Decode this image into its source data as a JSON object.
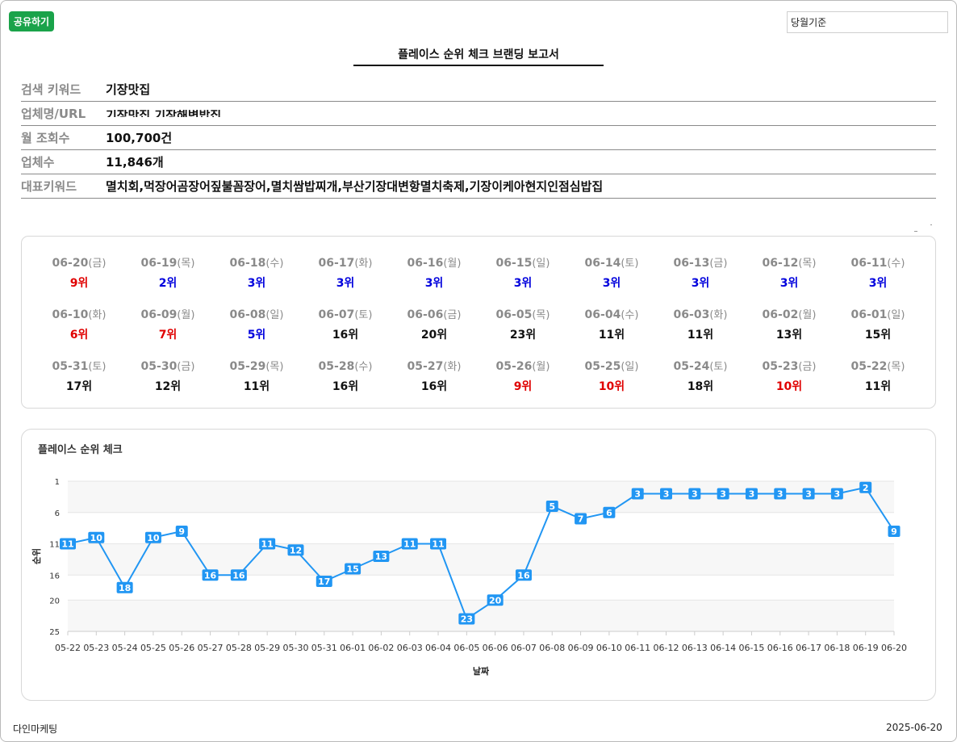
{
  "header": {
    "share_label": "공유하기",
    "basis_value": "당월기준",
    "title": "플레이스 순위 체크 브랜딩 보고서"
  },
  "info": {
    "keyword_label": "검색 키워드",
    "keyword_value": "기장맛집",
    "business_label": "업체명/URL",
    "business_value": "기장맛집 기장해변밥집",
    "views_label": "월 조회수",
    "views_value": "100,700건",
    "count_label": "업체수",
    "count_value": "11,846개",
    "rep_label": "대표키워드",
    "rep_value": "멸치회,먹장어곰장어짚불꼼장어,멸치쌈밥찌개,부산기장대변항멸치축제,기장이케아현지인점심밥집"
  },
  "colors": {
    "red": "#e00000",
    "blue": "#0000dd",
    "black": "#111111",
    "line": "#2196f3",
    "share": "#1aa34a"
  },
  "ranks": [
    {
      "date": "06-20",
      "dow": "(금)",
      "rank": "9위",
      "color": "red"
    },
    {
      "date": "06-19",
      "dow": "(목)",
      "rank": "2위",
      "color": "blue"
    },
    {
      "date": "06-18",
      "dow": "(수)",
      "rank": "3위",
      "color": "blue"
    },
    {
      "date": "06-17",
      "dow": "(화)",
      "rank": "3위",
      "color": "blue"
    },
    {
      "date": "06-16",
      "dow": "(월)",
      "rank": "3위",
      "color": "blue"
    },
    {
      "date": "06-15",
      "dow": "(일)",
      "rank": "3위",
      "color": "blue"
    },
    {
      "date": "06-14",
      "dow": "(토)",
      "rank": "3위",
      "color": "blue"
    },
    {
      "date": "06-13",
      "dow": "(금)",
      "rank": "3위",
      "color": "blue"
    },
    {
      "date": "06-12",
      "dow": "(목)",
      "rank": "3위",
      "color": "blue"
    },
    {
      "date": "06-11",
      "dow": "(수)",
      "rank": "3위",
      "color": "blue"
    },
    {
      "date": "06-10",
      "dow": "(화)",
      "rank": "6위",
      "color": "red"
    },
    {
      "date": "06-09",
      "dow": "(월)",
      "rank": "7위",
      "color": "red"
    },
    {
      "date": "06-08",
      "dow": "(일)",
      "rank": "5위",
      "color": "blue"
    },
    {
      "date": "06-07",
      "dow": "(토)",
      "rank": "16위",
      "color": "black"
    },
    {
      "date": "06-06",
      "dow": "(금)",
      "rank": "20위",
      "color": "black"
    },
    {
      "date": "06-05",
      "dow": "(목)",
      "rank": "23위",
      "color": "black"
    },
    {
      "date": "06-04",
      "dow": "(수)",
      "rank": "11위",
      "color": "black"
    },
    {
      "date": "06-03",
      "dow": "(화)",
      "rank": "11위",
      "color": "black"
    },
    {
      "date": "06-02",
      "dow": "(월)",
      "rank": "13위",
      "color": "black"
    },
    {
      "date": "06-01",
      "dow": "(일)",
      "rank": "15위",
      "color": "black"
    },
    {
      "date": "05-31",
      "dow": "(토)",
      "rank": "17위",
      "color": "black"
    },
    {
      "date": "05-30",
      "dow": "(금)",
      "rank": "12위",
      "color": "black"
    },
    {
      "date": "05-29",
      "dow": "(목)",
      "rank": "11위",
      "color": "black"
    },
    {
      "date": "05-28",
      "dow": "(수)",
      "rank": "16위",
      "color": "black"
    },
    {
      "date": "05-27",
      "dow": "(화)",
      "rank": "16위",
      "color": "black"
    },
    {
      "date": "05-26",
      "dow": "(월)",
      "rank": "9위",
      "color": "red"
    },
    {
      "date": "05-25",
      "dow": "(일)",
      "rank": "10위",
      "color": "red"
    },
    {
      "date": "05-24",
      "dow": "(토)",
      "rank": "18위",
      "color": "black"
    },
    {
      "date": "05-23",
      "dow": "(금)",
      "rank": "10위",
      "color": "red"
    },
    {
      "date": "05-22",
      "dow": "(목)",
      "rank": "11위",
      "color": "black"
    }
  ],
  "chart_title": "플레이스 순위 체크",
  "chart_data": {
    "type": "line",
    "title": "",
    "xlabel": "날짜",
    "ylabel": "순위",
    "y_inverted": true,
    "ylim": [
      1,
      25
    ],
    "yticks": [
      1,
      6,
      11,
      16,
      20,
      25
    ],
    "grid": true,
    "categories": [
      "05-22",
      "05-23",
      "05-24",
      "05-25",
      "05-26",
      "05-27",
      "05-28",
      "05-29",
      "05-30",
      "05-31",
      "06-01",
      "06-02",
      "06-03",
      "06-04",
      "06-05",
      "06-06",
      "06-07",
      "06-08",
      "06-09",
      "06-10",
      "06-11",
      "06-12",
      "06-13",
      "06-14",
      "06-15",
      "06-16",
      "06-17",
      "06-18",
      "06-19",
      "06-20"
    ],
    "series": [
      {
        "values": [
          11,
          10,
          18,
          10,
          9,
          16,
          16,
          11,
          12,
          17,
          15,
          13,
          11,
          11,
          23,
          20,
          16,
          5,
          7,
          6,
          3,
          3,
          3,
          3,
          3,
          3,
          3,
          3,
          2,
          9
        ]
      }
    ]
  },
  "footer": {
    "company": "다인마케팅",
    "date": "2025-06-20"
  }
}
